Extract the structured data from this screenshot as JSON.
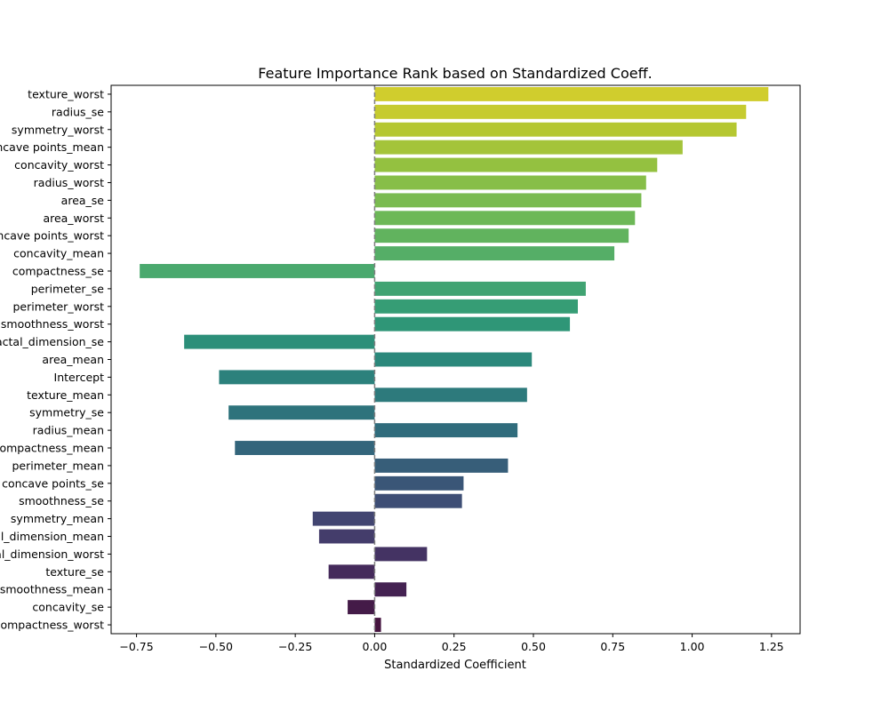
{
  "chart_data": {
    "type": "bar",
    "orientation": "horizontal",
    "title": "Feature Importance Rank based on Standardized Coeff.",
    "xlabel": "Standardized Coefficient",
    "ylabel": "",
    "xlim": [
      -0.83,
      1.34
    ],
    "xticks": [
      -0.75,
      -0.5,
      -0.25,
      0.0,
      0.25,
      0.5,
      0.75,
      1.0,
      1.25
    ],
    "xtick_labels": [
      "−0.75",
      "−0.50",
      "−0.25",
      "0.00",
      "0.25",
      "0.50",
      "0.75",
      "1.00",
      "1.25"
    ],
    "reference_line": {
      "x": 0,
      "style": "dashed",
      "color": "#7f7f7f"
    },
    "palette": "viridis",
    "grid": false,
    "categories": [
      "texture_worst",
      "radius_se",
      "symmetry_worst",
      "concave points_mean",
      "concavity_worst",
      "radius_worst",
      "area_se",
      "area_worst",
      "concave points_worst",
      "concavity_mean",
      "compactness_se",
      "perimeter_se",
      "perimeter_worst",
      "smoothness_worst",
      "fractal_dimension_se",
      "area_mean",
      "Intercept",
      "texture_mean",
      "symmetry_se",
      "radius_mean",
      "compactness_mean",
      "perimeter_mean",
      "concave points_se",
      "smoothness_se",
      "symmetry_mean",
      "fractal_dimension_mean",
      "fractal_dimension_worst",
      "texture_se",
      "smoothness_mean",
      "concavity_se",
      "compactness_worst"
    ],
    "values": [
      1.24,
      1.17,
      1.14,
      0.97,
      0.89,
      0.855,
      0.84,
      0.82,
      0.8,
      0.755,
      -0.74,
      0.665,
      0.64,
      0.615,
      -0.6,
      0.495,
      -0.49,
      0.48,
      -0.46,
      0.45,
      -0.44,
      0.42,
      0.28,
      0.275,
      -0.195,
      -0.175,
      0.165,
      -0.145,
      0.1,
      -0.085,
      0.02
    ],
    "colors": [
      "#d0cd2d",
      "#c6cb2f",
      "#b5c731",
      "#a4c43a",
      "#94c140",
      "#87be48",
      "#7abb50",
      "#6db857",
      "#61b35e",
      "#55ae67",
      "#4aa96e",
      "#40a372",
      "#369d75",
      "#2f9677",
      "#2c8f79",
      "#2b887b",
      "#2c817c",
      "#2d7a7c",
      "#2e737c",
      "#306c7c",
      "#33657b",
      "#375e79",
      "#3a5677",
      "#3e4e75",
      "#424571",
      "#443d6b",
      "#443363",
      "#452a5b",
      "#442252",
      "#441b48",
      "#45143f"
    ]
  }
}
